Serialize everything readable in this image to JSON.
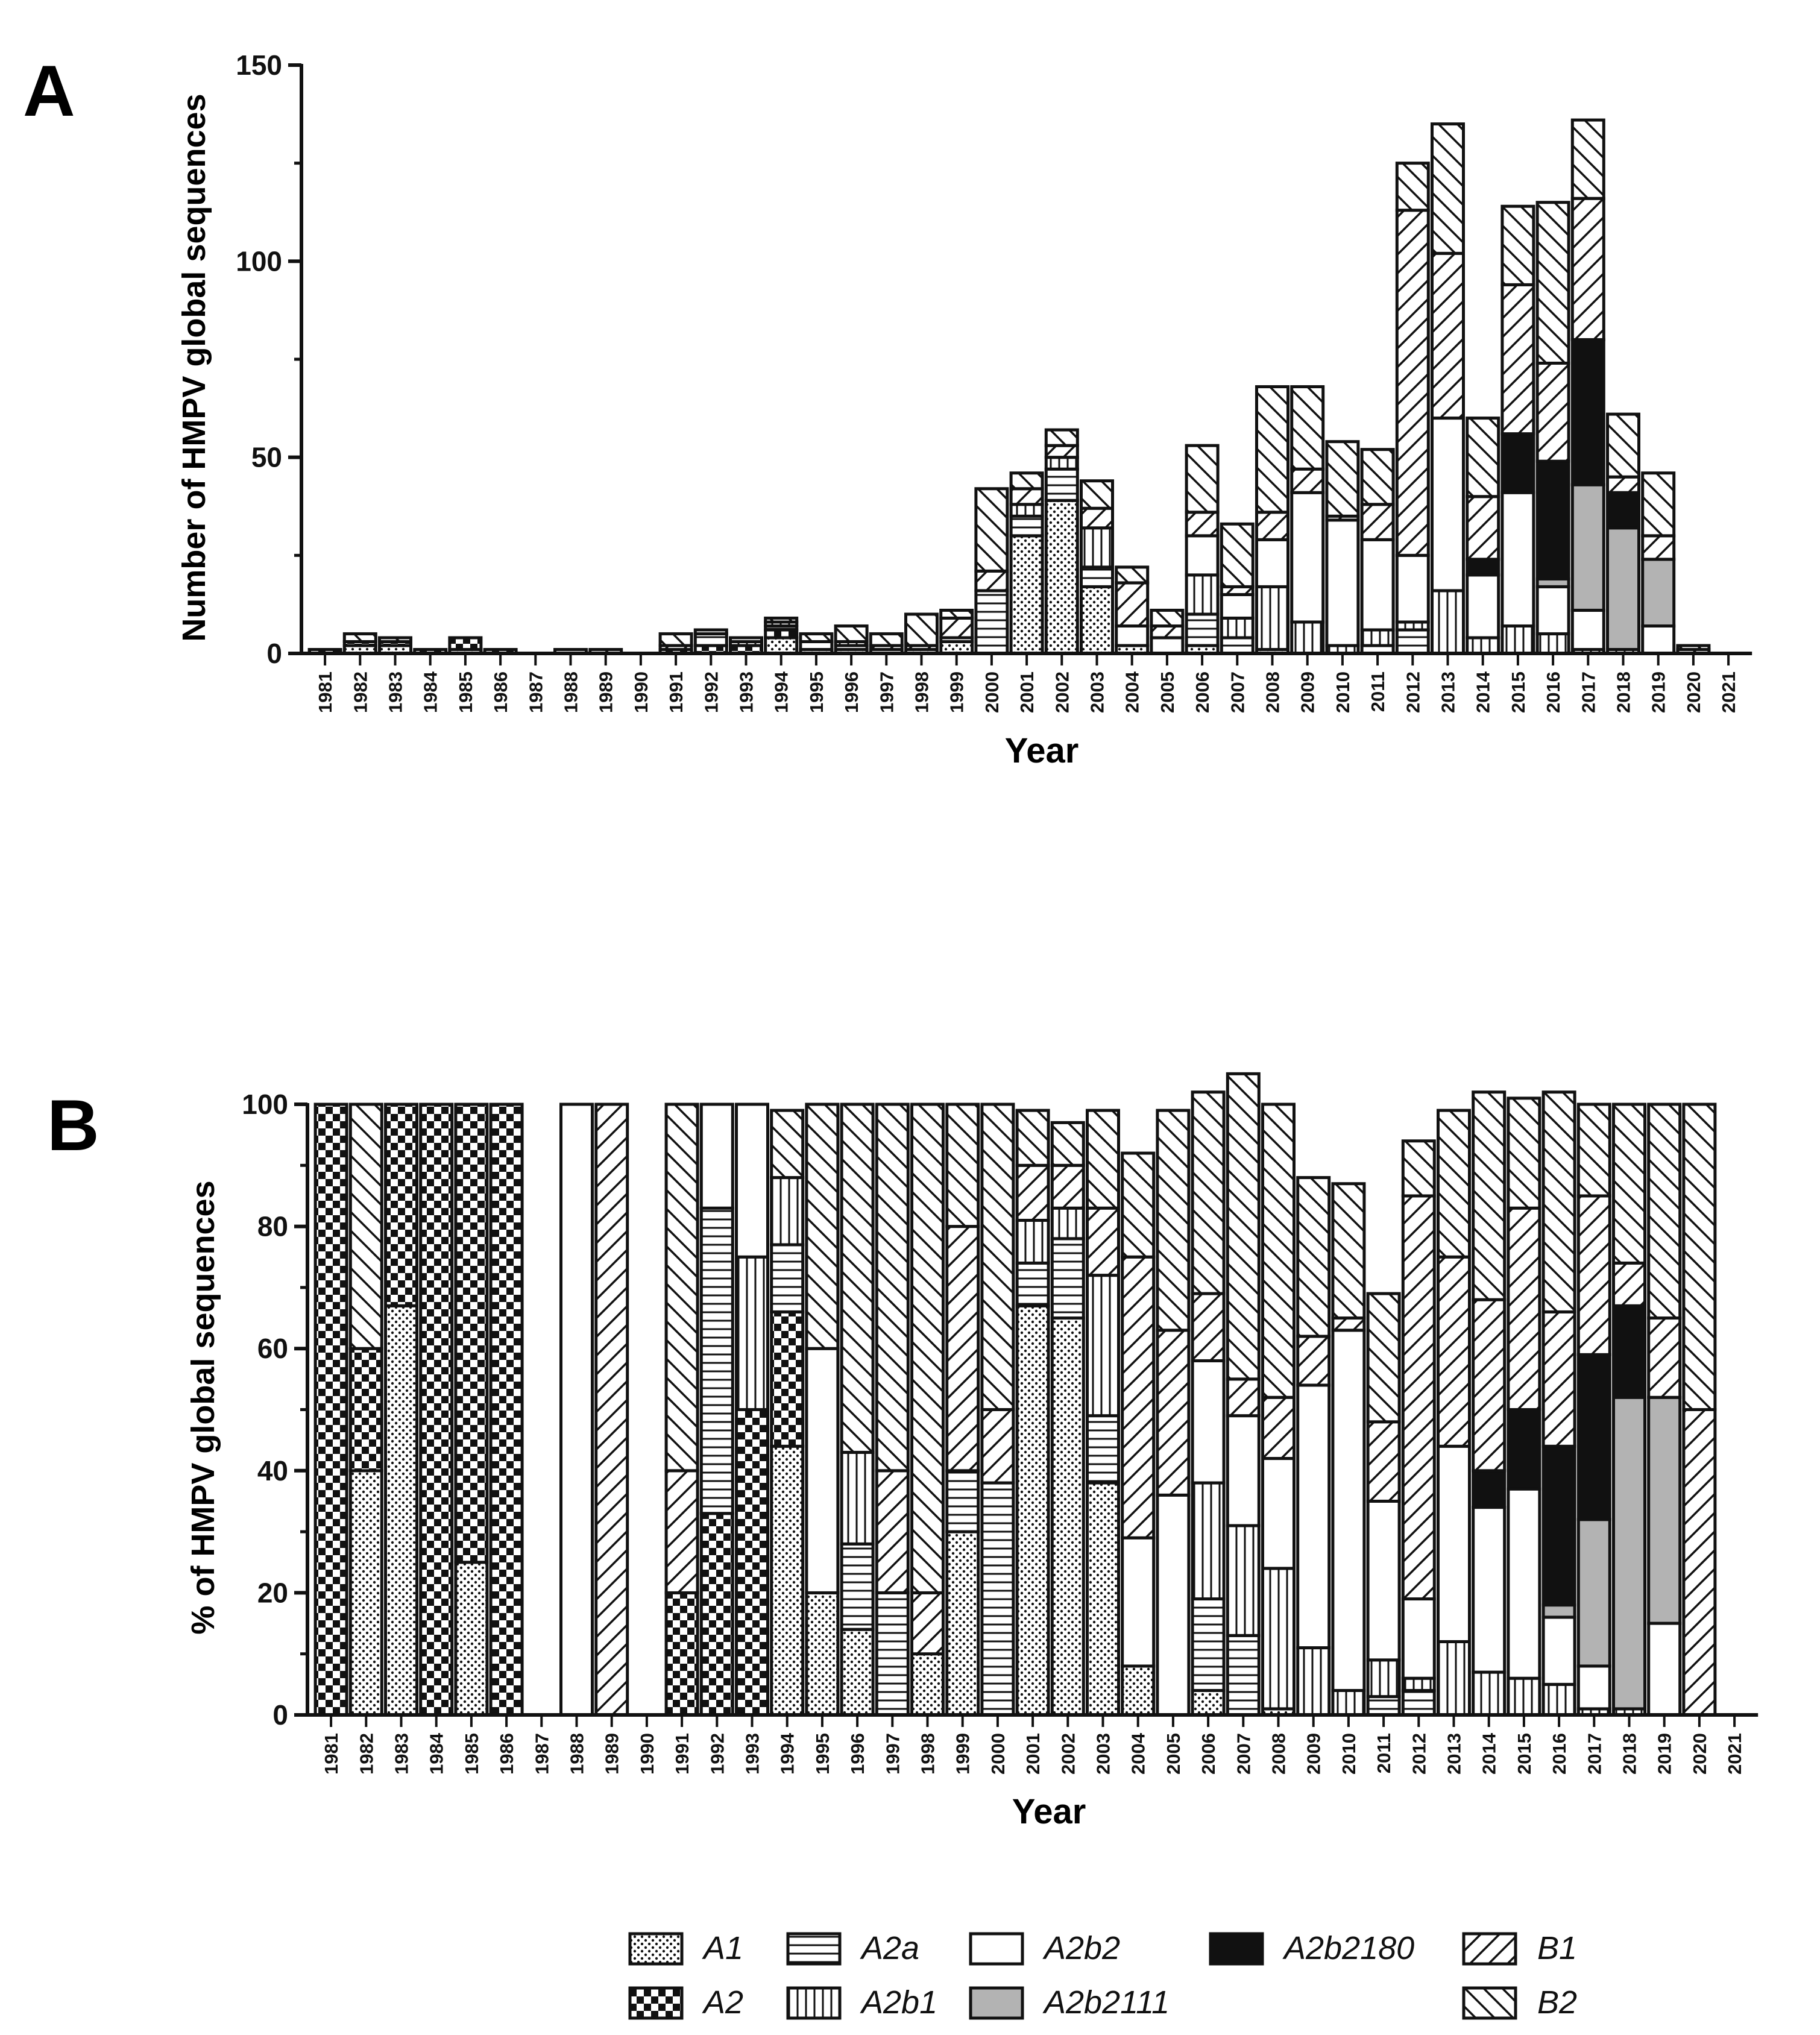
{
  "figure": {
    "panels": [
      "A",
      "B"
    ]
  },
  "chart_data": [
    {
      "panel": "A",
      "type": "bar",
      "stacked": true,
      "title": "",
      "xlabel": "Year",
      "ylabel": "Number of HMPV global sequences",
      "ylim": [
        0,
        150
      ],
      "yticks": [
        0,
        50,
        100,
        150
      ],
      "categories": [
        "1981",
        "1982",
        "1983",
        "1984",
        "1985",
        "1986",
        "1987",
        "1988",
        "1989",
        "1990",
        "1991",
        "1992",
        "1993",
        "1994",
        "1995",
        "1996",
        "1997",
        "1998",
        "1999",
        "2000",
        "2001",
        "2002",
        "2003",
        "2004",
        "2005",
        "2006",
        "2007",
        "2008",
        "2009",
        "2010",
        "2011",
        "2012",
        "2013",
        "2014",
        "2015",
        "2016",
        "2017",
        "2018",
        "2019",
        "2020",
        "2021"
      ],
      "series": [
        {
          "name": "A1",
          "values": [
            0,
            2,
            2,
            0,
            1,
            0,
            0,
            0,
            0,
            0,
            0,
            0,
            0,
            4,
            1,
            1,
            0,
            1,
            3,
            0,
            30,
            39,
            17,
            2,
            0,
            2,
            0,
            1,
            0,
            0,
            0,
            0,
            0,
            0,
            0,
            0,
            0,
            0,
            0,
            0,
            0
          ]
        },
        {
          "name": "A2",
          "values": [
            1,
            1,
            1,
            1,
            3,
            1,
            0,
            0,
            0,
            0,
            1,
            2,
            2,
            2,
            0,
            0,
            0,
            0,
            0,
            0,
            0,
            0,
            0,
            0,
            0,
            0,
            0,
            0,
            0,
            0,
            0,
            0,
            0,
            0,
            0,
            0,
            0,
            0,
            0,
            0,
            0
          ]
        },
        {
          "name": "A2a",
          "values": [
            0,
            0,
            0,
            0,
            0,
            0,
            0,
            0,
            0,
            0,
            0,
            3,
            0,
            1,
            0,
            1,
            1,
            0,
            1,
            16,
            5,
            8,
            5,
            0,
            0,
            8,
            4,
            0,
            0,
            0,
            2,
            6,
            0,
            0,
            0,
            0,
            0,
            0,
            0,
            0,
            0
          ]
        },
        {
          "name": "A2b1",
          "values": [
            0,
            0,
            0,
            0,
            0,
            0,
            0,
            0,
            0,
            0,
            0,
            0,
            1,
            1,
            0,
            1,
            0,
            0,
            0,
            0,
            3,
            3,
            10,
            0,
            0,
            10,
            5,
            16,
            8,
            2,
            4,
            2,
            16,
            4,
            7,
            5,
            1,
            1,
            0,
            0,
            0
          ]
        },
        {
          "name": "A2b2",
          "values": [
            0,
            0,
            0,
            0,
            0,
            0,
            0,
            1,
            0,
            0,
            0,
            1,
            1,
            0,
            2,
            0,
            0,
            0,
            0,
            0,
            0,
            0,
            0,
            5,
            4,
            10,
            6,
            12,
            33,
            32,
            23,
            17,
            44,
            16,
            34,
            12,
            10,
            0,
            7,
            0,
            0
          ]
        },
        {
          "name": "A2b2111",
          "values": [
            0,
            0,
            0,
            0,
            0,
            0,
            0,
            0,
            0,
            0,
            0,
            0,
            0,
            0,
            0,
            0,
            0,
            0,
            0,
            0,
            0,
            0,
            0,
            0,
            0,
            0,
            0,
            0,
            0,
            0,
            0,
            0,
            0,
            0,
            0,
            2,
            32,
            31,
            17,
            0,
            0
          ]
        },
        {
          "name": "A2b2180",
          "values": [
            0,
            0,
            0,
            0,
            0,
            0,
            0,
            0,
            0,
            0,
            0,
            0,
            0,
            0,
            0,
            0,
            0,
            0,
            0,
            0,
            0,
            0,
            0,
            0,
            0,
            0,
            0,
            0,
            0,
            0,
            0,
            0,
            0,
            4,
            15,
            30,
            37,
            9,
            0,
            0,
            0
          ]
        },
        {
          "name": "B1",
          "values": [
            0,
            0,
            0,
            0,
            0,
            0,
            0,
            0,
            1,
            0,
            1,
            0,
            0,
            0,
            0,
            0,
            1,
            1,
            5,
            5,
            4,
            3,
            5,
            11,
            3,
            6,
            2,
            7,
            6,
            1,
            9,
            88,
            42,
            16,
            38,
            25,
            36,
            4,
            6,
            1,
            0
          ]
        },
        {
          "name": "B2",
          "values": [
            0,
            2,
            1,
            0,
            0,
            0,
            0,
            0,
            0,
            0,
            3,
            0,
            0,
            1,
            2,
            4,
            3,
            8,
            2,
            21,
            4,
            4,
            7,
            4,
            4,
            17,
            16,
            32,
            21,
            19,
            14,
            12,
            33,
            20,
            20,
            41,
            20,
            16,
            16,
            1,
            0
          ]
        }
      ]
    },
    {
      "panel": "B",
      "type": "bar",
      "stacked": true,
      "percent": true,
      "title": "",
      "xlabel": "Year",
      "ylabel": "% of HMPV global sequences",
      "ylim": [
        0,
        100
      ],
      "yticks": [
        0,
        20,
        40,
        60,
        80,
        100
      ],
      "categories": [
        "1981",
        "1982",
        "1983",
        "1984",
        "1985",
        "1986",
        "1987",
        "1988",
        "1989",
        "1990",
        "1991",
        "1992",
        "1993",
        "1994",
        "1995",
        "1996",
        "1997",
        "1998",
        "1999",
        "2000",
        "2001",
        "2002",
        "2003",
        "2004",
        "2005",
        "2006",
        "2007",
        "2008",
        "2009",
        "2010",
        "2011",
        "2012",
        "2013",
        "2014",
        "2015",
        "2016",
        "2017",
        "2018",
        "2019",
        "2020",
        "2021"
      ],
      "series": [
        {
          "name": "A1",
          "values": [
            0,
            40,
            67,
            0,
            25,
            0,
            0,
            0,
            0,
            0,
            0,
            0,
            0,
            44,
            20,
            14,
            0,
            10,
            30,
            0,
            67,
            65,
            38,
            8,
            0,
            4,
            0,
            1,
            0,
            0,
            0,
            0,
            0,
            0,
            0,
            0,
            0,
            0,
            0,
            0,
            0
          ]
        },
        {
          "name": "A2",
          "values": [
            100,
            20,
            33,
            100,
            75,
            100,
            0,
            0,
            0,
            0,
            20,
            33,
            50,
            22,
            0,
            0,
            0,
            0,
            0,
            0,
            0,
            0,
            0,
            0,
            0,
            0,
            0,
            0,
            0,
            0,
            0,
            0,
            0,
            0,
            0,
            0,
            0,
            0,
            0,
            0,
            0
          ]
        },
        {
          "name": "A2a",
          "values": [
            0,
            0,
            0,
            0,
            0,
            0,
            0,
            0,
            0,
            0,
            0,
            50,
            0,
            11,
            0,
            14,
            20,
            0,
            10,
            38,
            7,
            13,
            11,
            0,
            0,
            15,
            13,
            0,
            0,
            0,
            3,
            4,
            0,
            0,
            0,
            0,
            0,
            0,
            0,
            0,
            0
          ]
        },
        {
          "name": "A2b1",
          "values": [
            0,
            0,
            0,
            0,
            0,
            0,
            0,
            0,
            0,
            0,
            0,
            0,
            25,
            11,
            0,
            15,
            0,
            0,
            0,
            0,
            7,
            5,
            23,
            0,
            0,
            19,
            18,
            23,
            11,
            4,
            6,
            2,
            12,
            7,
            6,
            5,
            1,
            1,
            0,
            0,
            0
          ]
        },
        {
          "name": "A2b2",
          "values": [
            0,
            0,
            0,
            0,
            0,
            0,
            0,
            100,
            0,
            0,
            0,
            17,
            25,
            0,
            40,
            0,
            0,
            0,
            0,
            0,
            0,
            0,
            0,
            21,
            36,
            20,
            18,
            18,
            43,
            59,
            26,
            13,
            32,
            27,
            31,
            11,
            7,
            0,
            15,
            0,
            0
          ]
        },
        {
          "name": "A2b2111",
          "values": [
            0,
            0,
            0,
            0,
            0,
            0,
            0,
            0,
            0,
            0,
            0,
            0,
            0,
            0,
            0,
            0,
            0,
            0,
            0,
            0,
            0,
            0,
            0,
            0,
            0,
            0,
            0,
            0,
            0,
            0,
            0,
            0,
            0,
            0,
            0,
            2,
            24,
            51,
            37,
            0,
            0
          ]
        },
        {
          "name": "A2b2180",
          "values": [
            0,
            0,
            0,
            0,
            0,
            0,
            0,
            0,
            0,
            0,
            0,
            0,
            0,
            0,
            0,
            0,
            0,
            0,
            0,
            0,
            0,
            0,
            0,
            0,
            0,
            0,
            0,
            0,
            0,
            0,
            0,
            0,
            0,
            6,
            13,
            26,
            27,
            15,
            0,
            0,
            0
          ]
        },
        {
          "name": "B1",
          "values": [
            0,
            0,
            0,
            0,
            0,
            0,
            0,
            0,
            100,
            0,
            20,
            0,
            0,
            0,
            0,
            0,
            20,
            10,
            40,
            12,
            9,
            7,
            11,
            46,
            27,
            11,
            6,
            10,
            8,
            2,
            13,
            66,
            31,
            28,
            33,
            22,
            26,
            7,
            13,
            50,
            0
          ]
        },
        {
          "name": "B2",
          "values": [
            0,
            40,
            0,
            0,
            0,
            0,
            0,
            0,
            0,
            0,
            60,
            0,
            0,
            11,
            40,
            57,
            60,
            80,
            20,
            50,
            9,
            7,
            16,
            17,
            36,
            33,
            50,
            48,
            26,
            22,
            21,
            9,
            24,
            34,
            18,
            36,
            15,
            26,
            35,
            50,
            0
          ]
        }
      ]
    }
  ],
  "legend": [
    {
      "key": "A1",
      "label": "A1"
    },
    {
      "key": "A2",
      "label": "A2"
    },
    {
      "key": "A2a",
      "label": "A2a"
    },
    {
      "key": "A2b1",
      "label": "A2b1"
    },
    {
      "key": "A2b2",
      "label": "A2b2"
    },
    {
      "key": "A2b2111",
      "label": "A2b2111"
    },
    {
      "key": "A2b2180",
      "label": "A2b2180"
    },
    {
      "key": "B1",
      "label": "B1"
    },
    {
      "key": "B2",
      "label": "B2"
    }
  ],
  "colors": {
    "ink": "#111111",
    "paper": "#ffffff",
    "grey": "#b3b3b3"
  }
}
